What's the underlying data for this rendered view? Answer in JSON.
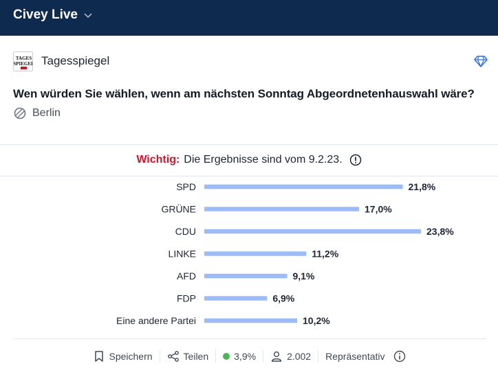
{
  "header": {
    "app_title": "Civey Live",
    "icon": "chevron-down-icon"
  },
  "publisher": {
    "name": "Tagesspiegel",
    "logo_text": "TAGES SPIEGEL",
    "premium_icon": "diamond-icon"
  },
  "poll": {
    "question": "Wen würden Sie wählen, wenn am nächsten Sonntag Abgeordnetenhauswahl wäre?",
    "region": "Berlin"
  },
  "notice": {
    "label": "Wichtig:",
    "text": "Die Ergebnisse sind vom 9.2.23.",
    "label_color": "#d5142c"
  },
  "chart_data": {
    "type": "bar",
    "orientation": "horizontal",
    "categories": [
      "SPD",
      "GRÜNE",
      "CDU",
      "LINKE",
      "AFD",
      "FDP",
      "Eine andere Partei"
    ],
    "values": [
      21.8,
      17.0,
      23.8,
      11.2,
      9.1,
      6.9,
      10.2
    ],
    "value_labels": [
      "21,8%",
      "17,0%",
      "23,8%",
      "11,2%",
      "9,1%",
      "6,9%",
      "10,2%"
    ],
    "bar_color": "#9dbcf7",
    "xlim": [
      0,
      23.8
    ]
  },
  "footer": {
    "save_label": "Speichern",
    "share_label": "Teilen",
    "error_margin": "3,9%",
    "error_color": "#47b853",
    "participants": "2.002",
    "representative_label": "Repräsentativ"
  }
}
